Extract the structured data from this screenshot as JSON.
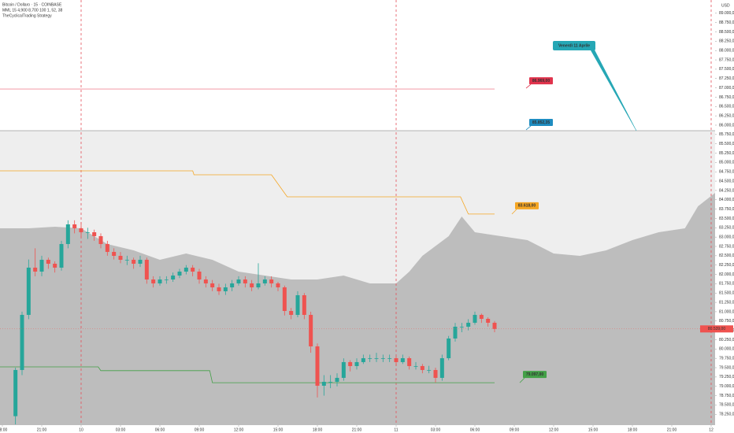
{
  "chart_data": {
    "type": "candlestick",
    "title": "Bitcoin / Dollaro · 15 · COINBASE",
    "indicators": [
      "MML 15 4,900 8,700 100 1, 52, 38",
      "TheCyclicalTrading Strategy"
    ],
    "currency": "USD",
    "up_color": "#26a69a",
    "down_color": "#ef5350",
    "grid": false,
    "xlim": [
      -0.18,
      54.3
    ],
    "xticks": [
      {
        "value": 0,
        "label": "18:00"
      },
      {
        "value": 3,
        "label": "21:00"
      },
      {
        "value": 6,
        "label": "10"
      },
      {
        "value": 9,
        "label": "03:00"
      },
      {
        "value": 12,
        "label": "06:00"
      },
      {
        "value": 15,
        "label": "09:00"
      },
      {
        "value": 18,
        "label": "12:00"
      },
      {
        "value": 21,
        "label": "15:00"
      },
      {
        "value": 24,
        "label": "18:00"
      },
      {
        "value": 27,
        "label": "21:00"
      },
      {
        "value": 30,
        "label": "11"
      },
      {
        "value": 33,
        "label": "03:00"
      },
      {
        "value": 36,
        "label": "06:00"
      },
      {
        "value": 39,
        "label": "09:00"
      },
      {
        "value": 42,
        "label": "12:00"
      },
      {
        "value": 45,
        "label": "15:00"
      },
      {
        "value": 48,
        "label": "18:00"
      },
      {
        "value": 51,
        "label": "21:00"
      },
      {
        "value": 54,
        "label": "12"
      }
    ],
    "ylim": [
      77960,
      89355
    ],
    "yticks": [
      {
        "value": 78250,
        "label": "78.250,00"
      },
      {
        "value": 78500,
        "label": "78.500,00"
      },
      {
        "value": 78750,
        "label": "78.750,00"
      },
      {
        "value": 79000,
        "label": "79.000,00"
      },
      {
        "value": 79250,
        "label": "79.250,00"
      },
      {
        "value": 79500,
        "label": "79.500,00"
      },
      {
        "value": 79750,
        "label": "79.750,00"
      },
      {
        "value": 80000,
        "label": "80.000,00"
      },
      {
        "value": 80250,
        "label": "80.250,00"
      },
      {
        "value": 80500,
        "label": "80.500,00"
      },
      {
        "value": 80750,
        "label": "80.750,00"
      },
      {
        "value": 81000,
        "label": "81.000,00"
      },
      {
        "value": 81250,
        "label": "81.250,00"
      },
      {
        "value": 81500,
        "label": "81.500,00"
      },
      {
        "value": 81750,
        "label": "81.750,00"
      },
      {
        "value": 82000,
        "label": "82.000,00"
      },
      {
        "value": 82250,
        "label": "82.250,00"
      },
      {
        "value": 82500,
        "label": "82.500,00"
      },
      {
        "value": 82750,
        "label": "82.750,00"
      },
      {
        "value": 83000,
        "label": "83.000,00"
      },
      {
        "value": 83250,
        "label": "83.250,00"
      },
      {
        "value": 83500,
        "label": "83.500,00"
      },
      {
        "value": 83750,
        "label": "83.750,00"
      },
      {
        "value": 84000,
        "label": "84.000,00"
      },
      {
        "value": 84250,
        "label": "84.250,00"
      },
      {
        "value": 84500,
        "label": "84.500,00"
      },
      {
        "value": 84750,
        "label": "84.750,00"
      },
      {
        "value": 85000,
        "label": "85.000,00"
      },
      {
        "value": 85250,
        "label": "85.250,00"
      },
      {
        "value": 85500,
        "label": "85.500,00"
      },
      {
        "value": 85750,
        "label": "85.750,00"
      },
      {
        "value": 86000,
        "label": "86.000,00"
      },
      {
        "value": 86250,
        "label": "86.250,00"
      },
      {
        "value": 86500,
        "label": "86.500,00"
      },
      {
        "value": 86750,
        "label": "86.750,00"
      },
      {
        "value": 87000,
        "label": "87.000,00"
      },
      {
        "value": 87250,
        "label": "87.250,00"
      },
      {
        "value": 87500,
        "label": "87.500,00"
      },
      {
        "value": 87750,
        "label": "87.750,00"
      },
      {
        "value": 88000,
        "label": "88.000,00"
      },
      {
        "value": 88250,
        "label": "88.250,00"
      },
      {
        "value": 88500,
        "label": "88.500,00"
      },
      {
        "value": 88750,
        "label": "88.750,00"
      },
      {
        "value": 89000,
        "label": "89.000,00"
      }
    ],
    "x": [
      1,
      1.5,
      2,
      2.5,
      3,
      3.5,
      4,
      4.5,
      5,
      5.5,
      6,
      6.5,
      7,
      7.5,
      8,
      8.5,
      9,
      9.5,
      10,
      10.5,
      11,
      11.5,
      12,
      12.5,
      13,
      13.5,
      14,
      14.5,
      15,
      15.5,
      16,
      16.5,
      17,
      17.5,
      18,
      18.5,
      19,
      19.5,
      20,
      20.5,
      21,
      21.5,
      22,
      22.5,
      23,
      23.5,
      24,
      24.5,
      25,
      25.5,
      26,
      26.5,
      27,
      27.5,
      28,
      28.5,
      29,
      29.5,
      30,
      30.5,
      31,
      31.5,
      32,
      32.5,
      33,
      33.5,
      34,
      34.5,
      35,
      35.5,
      36,
      36.5,
      37,
      37.5
    ],
    "candles": [
      [
        78200,
        79500,
        77980,
        79438
      ],
      [
        79438,
        81000,
        79300,
        80915
      ],
      [
        80915,
        82400,
        80800,
        82181
      ],
      [
        82181,
        82700,
        81950,
        82075
      ],
      [
        82075,
        82500,
        81950,
        82392
      ],
      [
        82392,
        82450,
        82150,
        82286
      ],
      [
        82286,
        82350,
        82050,
        82181
      ],
      [
        82181,
        82900,
        82100,
        82814
      ],
      [
        82814,
        83450,
        82700,
        83341
      ],
      [
        83341,
        83450,
        83100,
        83236
      ],
      [
        83236,
        83400,
        83000,
        83130
      ],
      [
        83130,
        83250,
        82950,
        83130
      ],
      [
        83130,
        83200,
        82900,
        83025
      ],
      [
        83025,
        83100,
        82700,
        82814
      ],
      [
        82814,
        82900,
        82500,
        82603
      ],
      [
        82603,
        82700,
        82400,
        82497
      ],
      [
        82497,
        82600,
        82300,
        82392
      ],
      [
        82392,
        82500,
        82250,
        82392
      ],
      [
        82392,
        82450,
        82150,
        82286
      ],
      [
        82286,
        82500,
        82200,
        82392
      ],
      [
        82392,
        82450,
        81750,
        81864
      ],
      [
        81864,
        81950,
        81650,
        81759
      ],
      [
        81759,
        81950,
        81700,
        81864
      ],
      [
        81864,
        81950,
        81750,
        81864
      ],
      [
        81864,
        82050,
        81800,
        81970
      ],
      [
        81970,
        82150,
        81900,
        82075
      ],
      [
        82075,
        82250,
        82000,
        82181
      ],
      [
        82181,
        82250,
        81950,
        82075
      ],
      [
        82075,
        82150,
        81750,
        81864
      ],
      [
        81864,
        81950,
        81650,
        81759
      ],
      [
        81759,
        81850,
        81550,
        81653
      ],
      [
        81653,
        81750,
        81450,
        81548
      ],
      [
        81548,
        81750,
        81450,
        81653
      ],
      [
        81653,
        81850,
        81550,
        81759
      ],
      [
        81759,
        81950,
        81700,
        81864
      ],
      [
        81864,
        81950,
        81650,
        81759
      ],
      [
        81759,
        81850,
        81550,
        81653
      ],
      [
        81653,
        82300,
        81600,
        81759
      ],
      [
        81759,
        81950,
        81700,
        81864
      ],
      [
        81864,
        81950,
        81650,
        81759
      ],
      [
        81759,
        81800,
        81550,
        81653
      ],
      [
        81653,
        81700,
        80900,
        81020
      ],
      [
        81020,
        81100,
        80800,
        80915
      ],
      [
        80915,
        81550,
        80850,
        81442
      ],
      [
        81442,
        81500,
        80800,
        80915
      ],
      [
        80915,
        81000,
        79900,
        80071
      ],
      [
        80071,
        80150,
        78700,
        79016
      ],
      [
        79016,
        79300,
        78750,
        79121
      ],
      [
        79121,
        79300,
        78950,
        79121
      ],
      [
        79121,
        79350,
        79000,
        79227
      ],
      [
        79227,
        79750,
        79150,
        79649
      ],
      [
        79649,
        79700,
        79400,
        79543
      ],
      [
        79543,
        79750,
        79450,
        79649
      ],
      [
        79649,
        79850,
        79600,
        79754
      ],
      [
        79754,
        79850,
        79650,
        79754
      ],
      [
        79754,
        79900,
        79650,
        79754
      ],
      [
        79754,
        79850,
        79650,
        79754
      ],
      [
        79754,
        79850,
        79650,
        79754
      ],
      [
        79754,
        79800,
        79550,
        79649
      ],
      [
        79649,
        79850,
        79600,
        79754
      ],
      [
        79754,
        79800,
        79450,
        79543
      ],
      [
        79543,
        79650,
        79450,
        79543
      ],
      [
        79543,
        79600,
        79350,
        79438
      ],
      [
        79438,
        79550,
        79350,
        79438
      ],
      [
        79438,
        79500,
        79100,
        79227
      ],
      [
        79227,
        79850,
        79150,
        79754
      ],
      [
        79754,
        80350,
        79700,
        80282
      ],
      [
        80282,
        80700,
        80200,
        80598
      ],
      [
        80598,
        80700,
        80450,
        80598
      ],
      [
        80598,
        80800,
        80500,
        80704
      ],
      [
        80704,
        81000,
        80650,
        80915
      ],
      [
        80915,
        80950,
        80700,
        80809
      ],
      [
        80809,
        80850,
        80600,
        80704
      ],
      [
        80704,
        80750,
        80450,
        80539
      ]
    ],
    "last_price_label": "80.539,00",
    "cloud": {
      "color": "#bdbdbd",
      "band_color": "#eeeeee",
      "x": [
        -0.18,
        2,
        4,
        6,
        8,
        10,
        12,
        14,
        16,
        18,
        20,
        22,
        24,
        26,
        28,
        30,
        31,
        32,
        34,
        35,
        36,
        38,
        40,
        42,
        44,
        46,
        48,
        50,
        52,
        53,
        54.3
      ],
      "values": [
        83236,
        83236,
        83278,
        83236,
        82814,
        82645,
        82392,
        82560,
        82392,
        82075,
        81970,
        81864,
        81864,
        81970,
        81759,
        81759,
        82075,
        82497,
        83025,
        83552,
        83130,
        83025,
        82919,
        82560,
        82497,
        82645,
        82919,
        83130,
        83236,
        83826,
        84185
      ]
    },
    "lines": [
      {
        "color": "#f5a623",
        "x": [
          -0.18,
          14.5,
          14.6,
          20.5,
          21.7,
          34.9,
          35.5,
          37.5
        ],
        "values": [
          84776,
          84776,
          84670,
          84670,
          84080,
          84080,
          83618,
          83618
        ],
        "value_label": "83.618,00"
      },
      {
        "color": "#43a047",
        "x": [
          -0.18,
          7.3,
          7.5,
          15.8,
          16,
          37.5
        ],
        "values": [
          79522,
          79522,
          79420,
          79420,
          79097,
          79097
        ],
        "value_label": "79.097,00"
      }
    ],
    "levels": [
      {
        "value": 86969,
        "label": "86.969,00",
        "color": "#f28b9a",
        "label_color": "#e0334c",
        "x_end": 37.5
      },
      {
        "value": 85852.35,
        "label": "85.852,35",
        "color": "#9e9e9e",
        "label_color": "#1f8cc0"
      }
    ],
    "annotation": {
      "text": "Venerdì 11 Aprile",
      "x": 48.3,
      "color": "#26a7b5"
    }
  }
}
